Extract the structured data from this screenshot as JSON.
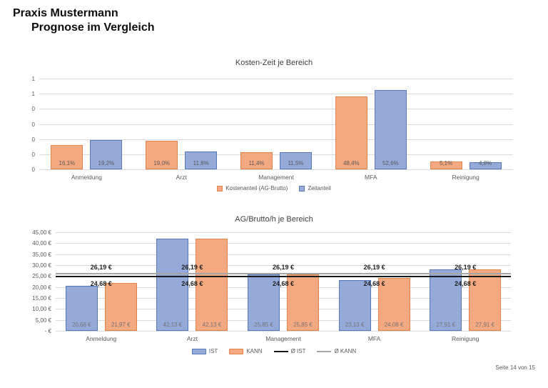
{
  "header": {
    "line1": "Praxis Mustermann",
    "line2": "Prognose im Vergleich"
  },
  "footer": {
    "text": "Seite 14 von 15"
  },
  "colors": {
    "blue_fill": "#95aad8",
    "blue_border": "#5577bb",
    "orange_fill": "#f4a981",
    "orange_border": "#e08448",
    "grid": "#d9d9d9",
    "axis_text": "#595959",
    "title_text": "#404040",
    "bar_label_top": "#595959",
    "bar_label_bottom": "#737373",
    "annotation_text": "#1f1f1f",
    "avg_ist_line": "#1a1a1a",
    "avg_kann_line": "#a6a6a6"
  },
  "chart_data": [
    {
      "type": "bar",
      "title": "Kosten-Zeit je Bereich",
      "categories": [
        "Anmeldung",
        "Arzt",
        "Management",
        "MFA",
        "Reinigung"
      ],
      "series": [
        {
          "name": "Kostenanteil (AG-Brutto)",
          "color": "orange",
          "values": [
            16.1,
            19.0,
            11.4,
            48.4,
            5.1
          ],
          "labels": [
            "16,1%",
            "19,0%",
            "11,4%",
            "48,4%",
            "5,1%"
          ]
        },
        {
          "name": "Zeitanteil",
          "color": "blue",
          "values": [
            19.2,
            11.8,
            11.5,
            52.6,
            4.8
          ],
          "labels": [
            "19,2%",
            "11,8%",
            "11,5%",
            "52,6%",
            "4,8%"
          ]
        }
      ],
      "unit": "percent",
      "ylim": [
        0,
        0.6
      ],
      "y_tick_labels": [
        "1",
        "1",
        "0",
        "0",
        "0",
        "0",
        "0"
      ],
      "grid": true,
      "legend_position": "bottom",
      "legend": [
        {
          "label": "Kostenanteil (AG-Brutto)",
          "marker": "box",
          "color": "orange"
        },
        {
          "label": "Zeitanteil",
          "marker": "box",
          "color": "blue"
        }
      ]
    },
    {
      "type": "bar",
      "title": "AG/Brutto/h je Bereich",
      "categories": [
        "Anmeldung",
        "Arzt",
        "Management",
        "MFA",
        "Reinigung"
      ],
      "series": [
        {
          "name": "IST",
          "color": "blue",
          "values": [
            20.68,
            42.13,
            25.85,
            23.13,
            27.91
          ],
          "labels": [
            "20,68 €",
            "42,13 €",
            "25,85 €",
            "23,13 €",
            "27,91 €"
          ]
        },
        {
          "name": "KANN",
          "color": "orange",
          "values": [
            21.97,
            42.13,
            25.85,
            24.08,
            27.91
          ],
          "labels": [
            "21,97 €",
            "42,13 €",
            "25,85 €",
            "24,08 €",
            "27,91 €"
          ]
        }
      ],
      "unit": "euro_per_hour",
      "ylim": [
        0,
        45
      ],
      "y_tick_labels": [
        "45,00 €",
        "40,00 €",
        "35,00 €",
        "30,00 €",
        "25,00 €",
        "20,00 €",
        "15,00 €",
        "10,00 €",
        "5,00 €",
        "-  €"
      ],
      "grid": true,
      "avg_lines": [
        {
          "name": "Ø KANN",
          "value": 26.19,
          "label": "26,19 €",
          "color_key": "avg_kann_line"
        },
        {
          "name": "Ø IST",
          "value": 24.68,
          "label": "24,68 €",
          "color_key": "avg_ist_line"
        }
      ],
      "legend_position": "bottom",
      "legend": [
        {
          "label": "IST",
          "marker": "bar",
          "color": "blue"
        },
        {
          "label": "KANN",
          "marker": "bar",
          "color": "orange"
        },
        {
          "label": "Ø IST",
          "marker": "line",
          "color_key": "avg_ist_line"
        },
        {
          "label": "Ø KANN",
          "marker": "line",
          "color_key": "avg_kann_line"
        }
      ]
    }
  ]
}
